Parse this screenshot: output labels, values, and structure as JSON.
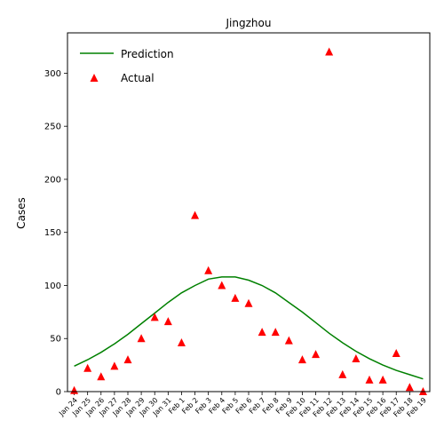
{
  "chart_data": {
    "type": "line",
    "title": "Jingzhou",
    "xlabel": "",
    "ylabel": "Cases",
    "ylim": [
      0,
      338
    ],
    "yticks": [
      0,
      50,
      100,
      150,
      200,
      250,
      300
    ],
    "grid": false,
    "legend_position": "top-left",
    "categories": [
      "Jan 24",
      "Jan 25",
      "Jan 26",
      "Jan 27",
      "Jan 28",
      "Jan 29",
      "Jan 30",
      "Jan 31",
      "Feb 1",
      "Feb 2",
      "Feb 3",
      "Feb 4",
      "Feb 5",
      "Feb 6",
      "Feb 7",
      "Feb 8",
      "Feb 9",
      "Feb 10",
      "Feb 11",
      "Feb 12",
      "Feb 13",
      "Feb 14",
      "Feb 15",
      "Feb 16",
      "Feb 17",
      "Feb 18",
      "Feb 19"
    ],
    "series": [
      {
        "name": "Prediction",
        "kind": "line",
        "color": "#008000",
        "values": [
          24,
          30,
          37,
          45,
          54,
          64,
          74,
          84,
          93,
          100,
          106,
          108,
          108,
          105,
          100,
          93,
          84,
          75,
          65,
          55,
          46,
          38,
          31,
          25,
          20,
          16,
          12
        ]
      },
      {
        "name": "Actual",
        "kind": "scatter",
        "marker": "triangle",
        "color": "#ff0000",
        "values": [
          1,
          22,
          14,
          24,
          30,
          50,
          70,
          66,
          46,
          166,
          114,
          100,
          88,
          83,
          56,
          56,
          48,
          30,
          35,
          320,
          16,
          31,
          11,
          11,
          36,
          4,
          0
        ]
      }
    ]
  }
}
